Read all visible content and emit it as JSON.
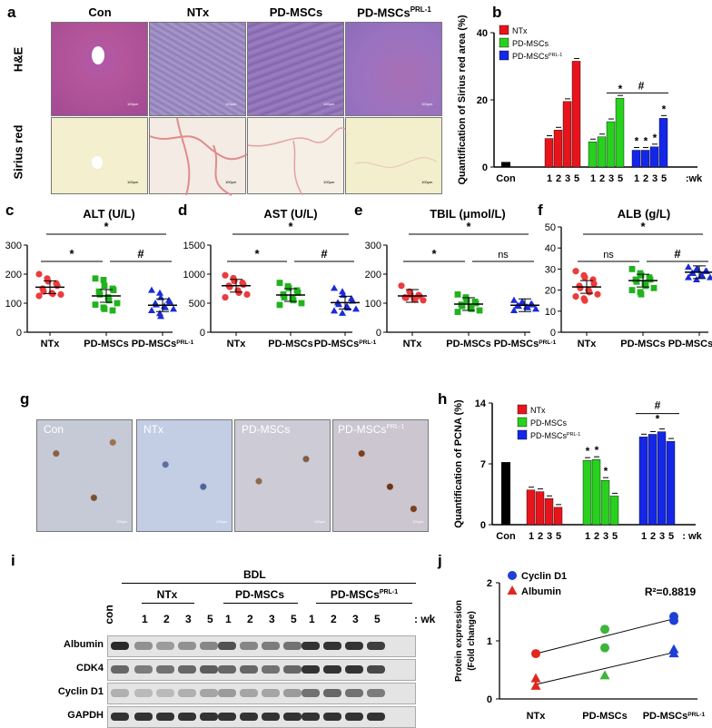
{
  "panels": {
    "a": {
      "letter": "a",
      "cols": [
        "Con",
        "NTx",
        "PD-MSCs",
        "PD-MSCs"
      ],
      "sup": "PRL-1",
      "rows": [
        "H&E",
        "Sirius red"
      ],
      "scale": "100μm"
    },
    "b": {
      "letter": "b"
    },
    "c": {
      "letter": "c"
    },
    "d": {
      "letter": "d"
    },
    "e": {
      "letter": "e"
    },
    "f": {
      "letter": "f"
    },
    "g": {
      "letter": "g",
      "labels": [
        "Con",
        "NTx",
        "PD-MSCs",
        "PD-MSCs"
      ],
      "sup": "PRL-1",
      "scale": "100μm"
    },
    "h": {
      "letter": "h"
    },
    "i": {
      "letter": "i",
      "bdl": "BDL",
      "con": "con",
      "groups": [
        "NTx",
        "PD-MSCs",
        "PD-MSCs"
      ],
      "sup": "PRL-1",
      "weeks": [
        "1",
        "2",
        "3",
        "5"
      ],
      "wk": ": wk",
      "rows": [
        "Albumin",
        "CDK4",
        "Cyclin D1",
        "GAPDH"
      ]
    },
    "j": {
      "letter": "j"
    }
  },
  "chart_data": [
    {
      "id": "b",
      "type": "bar",
      "ylabel": "Quantification of Sirius red area (%)",
      "ylim": [
        0,
        40
      ],
      "yticks": [
        0,
        20,
        40
      ],
      "legend": [
        "NTx",
        "PD-MSCs",
        "PD-MSCs^PRL-1"
      ],
      "legend_position": "top-left",
      "colors": [
        "#e8141b",
        "#27d11d",
        "#1427e8"
      ],
      "con": {
        "label": "Con",
        "value": 1.5
      },
      "xticks": [
        "1",
        "2",
        "3",
        "5"
      ],
      "xunit": ":wk",
      "series": [
        {
          "name": "NTx",
          "values": [
            8.5,
            11,
            19.5,
            31.5
          ]
        },
        {
          "name": "PD-MSCs",
          "values": [
            7.5,
            9,
            13.5,
            20.5
          ]
        },
        {
          "name": "PD-MSCs^PRL-1",
          "values": [
            5,
            5,
            6,
            14.5
          ]
        }
      ],
      "annotations": {
        "stars": [
          "PD-MSCs:5",
          "PD-MSCs^PRL-1:1",
          "PD-MSCs^PRL-1:2",
          "PD-MSCs^PRL-1:3",
          "PD-MSCs^PRL-1:5"
        ],
        "hash": "#"
      }
    },
    {
      "id": "c",
      "type": "scatter",
      "title": "ALT (U/L)",
      "ylim": [
        0,
        300
      ],
      "yticks": [
        0,
        100,
        200,
        300
      ],
      "categories": [
        "NTx",
        "PD-MSCs",
        "PD-MSCs^PRL-1"
      ],
      "means": [
        155,
        125,
        93
      ],
      "points": [
        [
          200,
          185,
          175,
          168,
          160,
          150,
          140,
          135,
          132,
          130,
          125
        ],
        [
          185,
          180,
          160,
          150,
          145,
          140,
          130,
          120,
          110,
          100,
          95,
          85,
          80,
          75
        ],
        [
          145,
          135,
          120,
          110,
          105,
          100,
          95,
          90,
          85,
          80,
          75,
          65,
          55
        ]
      ],
      "brackets": [
        {
          "from": 0,
          "to": 2,
          "label": "*"
        },
        {
          "from": 0,
          "to": 1,
          "label": "*"
        },
        {
          "from": 1,
          "to": 2,
          "label": "#"
        }
      ]
    },
    {
      "id": "d",
      "type": "scatter",
      "title": "AST (U/L)",
      "ylim": [
        0,
        1500
      ],
      "yticks": [
        0,
        500,
        1000,
        1500
      ],
      "categories": [
        "NTx",
        "PD-MSCs",
        "PD-MSCs^PRL-1"
      ],
      "means": [
        800,
        640,
        510
      ],
      "points": [
        [
          980,
          930,
          880,
          850,
          820,
          800,
          780,
          720,
          680,
          650,
          600
        ],
        [
          850,
          790,
          760,
          720,
          680,
          650,
          600,
          580,
          550,
          500,
          470
        ],
        [
          760,
          700,
          640,
          580,
          540,
          510,
          480,
          450,
          420,
          400,
          370,
          330
        ]
      ],
      "brackets": [
        {
          "from": 0,
          "to": 2,
          "label": "*"
        },
        {
          "from": 0,
          "to": 1,
          "label": "*"
        },
        {
          "from": 1,
          "to": 2,
          "label": "#"
        }
      ]
    },
    {
      "id": "e",
      "type": "scatter",
      "title": "TBIL (μmol/L)",
      "ylim": [
        0,
        300
      ],
      "yticks": [
        0,
        100,
        200,
        300
      ],
      "categories": [
        "NTx",
        "PD-MSCs",
        "PD-MSCs^PRL-1"
      ],
      "means": [
        125,
        97,
        93
      ],
      "points": [
        [
          160,
          140,
          130,
          128,
          125,
          120,
          118,
          115,
          112,
          110
        ],
        [
          130,
          120,
          110,
          105,
          100,
          95,
          90,
          85,
          80,
          75,
          70
        ],
        [
          110,
          105,
          100,
          98,
          95,
          92,
          90,
          88,
          85,
          80,
          75
        ]
      ],
      "brackets": [
        {
          "from": 0,
          "to": 2,
          "label": "*"
        },
        {
          "from": 0,
          "to": 1,
          "label": "*"
        },
        {
          "from": 1,
          "to": 2,
          "label": "ns"
        }
      ]
    },
    {
      "id": "f",
      "type": "scatter",
      "title": "ALB (g/L)",
      "ylim": [
        0,
        50
      ],
      "yticks": [
        0,
        10,
        20,
        30,
        40,
        50
      ],
      "categories": [
        "NTx",
        "PD-MSCs",
        "PD-MSCs^PRL-1"
      ],
      "means": [
        21.5,
        24.5,
        28.5
      ],
      "points": [
        [
          29,
          27,
          26,
          25,
          23,
          22,
          21,
          20,
          19,
          18,
          17,
          16,
          15
        ],
        [
          30,
          28,
          27,
          26,
          25,
          25,
          24,
          23,
          22,
          21,
          20,
          19,
          18
        ],
        [
          31,
          30,
          30,
          29,
          29,
          28,
          28,
          27,
          27,
          26,
          26,
          25
        ]
      ],
      "brackets": [
        {
          "from": 0,
          "to": 2,
          "label": "*"
        },
        {
          "from": 0,
          "to": 1,
          "label": "ns"
        },
        {
          "from": 1,
          "to": 2,
          "label": "#"
        }
      ]
    },
    {
      "id": "h",
      "type": "bar",
      "ylabel": "Quantification of PCNA (%)",
      "ylim": [
        0,
        14
      ],
      "yticks": [
        0,
        7,
        14
      ],
      "legend": [
        "NTx",
        "PD-MSCs",
        "PD-MSCs^PRL-1"
      ],
      "legend_position": "top-left",
      "colors": [
        "#e8141b",
        "#27d11d",
        "#1427e8"
      ],
      "con": {
        "label": "Con",
        "value": 7.2
      },
      "xticks": [
        "1",
        "2",
        "3",
        "5"
      ],
      "xunit": ": wk",
      "series": [
        {
          "name": "NTx",
          "values": [
            4,
            3.8,
            3,
            2
          ]
        },
        {
          "name": "PD-MSCs",
          "values": [
            7.4,
            7.5,
            5.1,
            3.3
          ]
        },
        {
          "name": "PD-MSCs^PRL-1",
          "values": [
            10.1,
            10.4,
            10.7,
            9.6
          ]
        }
      ],
      "annotations": {
        "stars": [
          "PD-MSCs:1",
          "PD-MSCs:2",
          "PD-MSCs:3",
          "PD-MSCs^PRL-1:all"
        ],
        "hash": "#"
      }
    },
    {
      "id": "j",
      "type": "scatter",
      "ylabel": "Protein expression (Fold change)",
      "ylim": [
        0,
        2
      ],
      "yticks": [
        0,
        1,
        2
      ],
      "categories": [
        "NTx",
        "PD-MSCs",
        "PD-MSCs^PRL-1"
      ],
      "legend": [
        "Cyclin D1",
        "Albumin"
      ],
      "annotation": "R²=0.8819",
      "series": [
        {
          "name": "Cyclin D1",
          "points": [
            [
              0,
              0.78
            ],
            [
              1,
              1.2
            ],
            [
              1,
              0.88
            ],
            [
              2,
              1.42
            ],
            [
              2,
              1.35
            ]
          ],
          "fit": [
            0.78,
            1.38
          ]
        },
        {
          "name": "Albumin",
          "points": [
            [
              0,
              0.35
            ],
            [
              0,
              0.22
            ],
            [
              1,
              0.4
            ],
            [
              2,
              0.85
            ],
            [
              2,
              0.78
            ]
          ],
          "fit": [
            0.25,
            0.8
          ]
        }
      ]
    }
  ]
}
